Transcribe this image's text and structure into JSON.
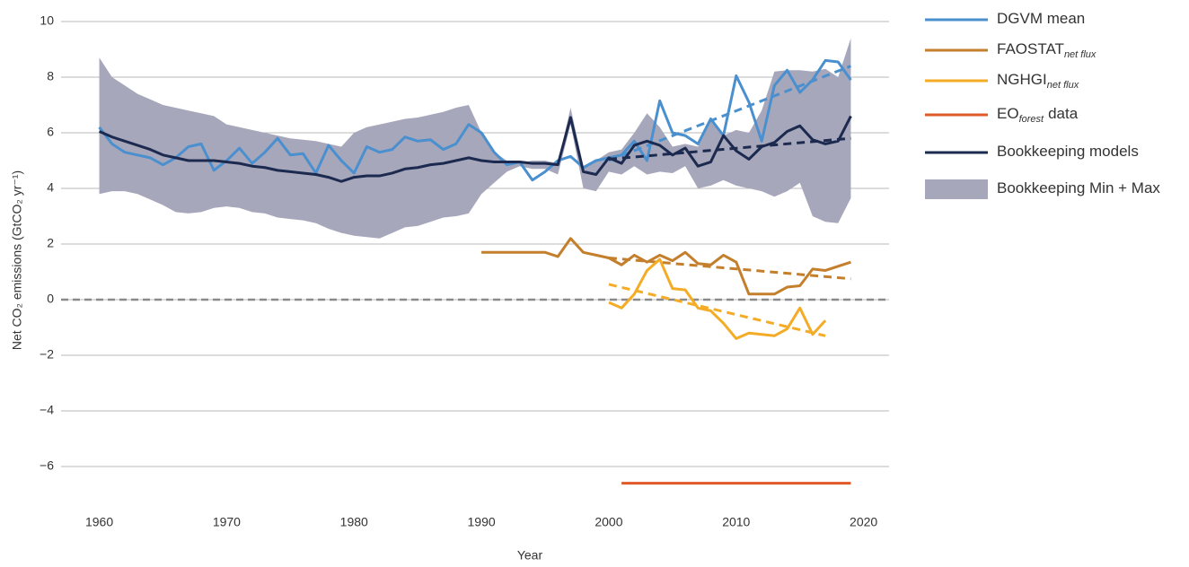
{
  "chart_data": {
    "type": "line",
    "ylabel": "Net CO₂ emissions (GtCO₂ yr⁻¹)",
    "xlabel": "Year",
    "xlim": [
      1957,
      2022
    ],
    "xticks": [
      1960,
      1970,
      1980,
      1990,
      2000,
      2010,
      2020
    ],
    "ylim": [
      -7,
      10
    ],
    "yticks": [
      {
        "value": -6,
        "label": "−6"
      },
      {
        "value": -4,
        "label": "−4"
      },
      {
        "value": -2,
        "label": "−2"
      },
      0,
      2,
      4,
      6,
      8,
      10
    ],
    "grid": true,
    "zero_line": 0,
    "legend": "right",
    "x": [
      1960,
      1961,
      1962,
      1963,
      1964,
      1965,
      1966,
      1967,
      1968,
      1969,
      1970,
      1971,
      1972,
      1973,
      1974,
      1975,
      1976,
      1977,
      1978,
      1979,
      1980,
      1981,
      1982,
      1983,
      1984,
      1985,
      1986,
      1987,
      1988,
      1989,
      1990,
      1991,
      1992,
      1993,
      1994,
      1995,
      1996,
      1997,
      1998,
      1999,
      2000,
      2001,
      2002,
      2003,
      2004,
      2005,
      2006,
      2007,
      2008,
      2009,
      2010,
      2011,
      2012,
      2013,
      2014,
      2015,
      2016,
      2017,
      2018,
      2019
    ],
    "series": [
      {
        "name": "DGVM mean",
        "color": "#4a8fce",
        "values": [
          6.2,
          5.6,
          5.3,
          5.2,
          5.1,
          4.85,
          5.1,
          5.5,
          5.6,
          4.65,
          5.0,
          5.45,
          4.9,
          5.3,
          5.8,
          5.2,
          5.25,
          4.55,
          5.55,
          5.0,
          4.55,
          5.5,
          5.3,
          5.4,
          5.85,
          5.7,
          5.75,
          5.4,
          5.6,
          6.3,
          6.0,
          5.3,
          4.85,
          4.95,
          4.3,
          4.6,
          5.0,
          5.15,
          4.75,
          5.0,
          5.1,
          5.2,
          5.7,
          5.0,
          7.15,
          6.0,
          5.9,
          5.6,
          6.5,
          5.9,
          8.05,
          7.1,
          5.7,
          7.7,
          8.25,
          7.45,
          7.9,
          8.6,
          8.55,
          7.9
        ],
        "trend": {
          "x": [
            2000,
            2019
          ],
          "values": [
            5.0,
            8.4
          ]
        }
      },
      {
        "name": "FAOSTAT",
        "name_sub": "net flux",
        "color": "#c47f2c",
        "x": [
          1990,
          1991,
          1992,
          1993,
          1994,
          1995,
          1996,
          1997,
          1998,
          1999,
          2000,
          2001,
          2002,
          2003,
          2004,
          2005,
          2006,
          2007,
          2008,
          2009,
          2010,
          2011,
          2012,
          2013,
          2014,
          2015,
          2016,
          2017,
          2018,
          2019
        ],
        "values": [
          1.7,
          1.7,
          1.7,
          1.7,
          1.7,
          1.7,
          1.55,
          2.2,
          1.7,
          1.6,
          1.5,
          1.25,
          1.6,
          1.35,
          1.6,
          1.4,
          1.7,
          1.3,
          1.25,
          1.6,
          1.35,
          0.2,
          0.2,
          0.2,
          0.45,
          0.5,
          1.1,
          1.05,
          1.2,
          1.35
        ],
        "trend": {
          "x": [
            2000,
            2019
          ],
          "values": [
            1.5,
            0.75
          ]
        }
      },
      {
        "name": "NGHGI",
        "name_sub": "net flux",
        "color": "#f4ac26",
        "x": [
          2000,
          2001,
          2002,
          2003,
          2004,
          2005,
          2006,
          2007,
          2008,
          2009,
          2010,
          2011,
          2012,
          2013,
          2014,
          2015,
          2016,
          2017
        ],
        "values": [
          -0.1,
          -0.3,
          0.2,
          1.05,
          1.45,
          0.4,
          0.35,
          -0.3,
          -0.4,
          -0.85,
          -1.4,
          -1.2,
          -1.25,
          -1.3,
          -1.05,
          -0.3,
          -1.25,
          -0.75
        ],
        "trend": {
          "x": [
            2000,
            2017
          ],
          "values": [
            0.55,
            -1.3
          ]
        }
      },
      {
        "name": "EO",
        "name_sub": "forest",
        "name_after": "data",
        "color": "#e05a27",
        "x": [
          2001,
          2019
        ],
        "values": [
          -6.6,
          -6.6
        ]
      },
      {
        "name": "Bookkeeping models",
        "color": "#1b2a4e",
        "values": [
          6.05,
          5.85,
          5.7,
          5.55,
          5.4,
          5.2,
          5.1,
          5.0,
          5.0,
          5.0,
          4.95,
          4.9,
          4.8,
          4.75,
          4.65,
          4.6,
          4.55,
          4.5,
          4.4,
          4.25,
          4.4,
          4.45,
          4.45,
          4.55,
          4.7,
          4.75,
          4.85,
          4.9,
          5.0,
          5.1,
          5.0,
          4.95,
          4.95,
          4.95,
          4.9,
          4.9,
          4.85,
          6.55,
          4.6,
          4.5,
          5.1,
          4.9,
          5.55,
          5.7,
          5.55,
          5.2,
          5.45,
          4.8,
          4.95,
          5.9,
          5.35,
          5.05,
          5.5,
          5.65,
          6.05,
          6.25,
          5.75,
          5.6,
          5.7,
          6.6
        ],
        "trend": {
          "x": [
            2000,
            2019
          ],
          "values": [
            5.05,
            5.8
          ]
        }
      },
      {
        "name": "Bookkeeping Min + Max",
        "color": "#a7a7bc",
        "kind": "band",
        "upper": [
          8.7,
          8.0,
          7.7,
          7.4,
          7.2,
          7.0,
          6.9,
          6.8,
          6.7,
          6.6,
          6.3,
          6.2,
          6.1,
          6.0,
          5.9,
          5.8,
          5.75,
          5.7,
          5.6,
          5.5,
          6.0,
          6.2,
          6.3,
          6.4,
          6.5,
          6.55,
          6.65,
          6.75,
          6.9,
          7.0,
          6.0,
          5.3,
          5.0,
          4.9,
          5.0,
          5.0,
          4.9,
          6.9,
          4.8,
          5.0,
          5.3,
          5.4,
          6.0,
          6.7,
          6.2,
          5.5,
          5.6,
          5.5,
          6.5,
          5.9,
          6.1,
          6.0,
          6.8,
          8.2,
          8.25,
          8.25,
          8.2,
          8.3,
          8.0,
          9.4
        ],
        "lower": [
          3.8,
          3.9,
          3.9,
          3.8,
          3.6,
          3.4,
          3.15,
          3.1,
          3.15,
          3.3,
          3.35,
          3.3,
          3.15,
          3.1,
          2.95,
          2.9,
          2.85,
          2.75,
          2.55,
          2.4,
          2.3,
          2.25,
          2.2,
          2.4,
          2.6,
          2.65,
          2.8,
          2.95,
          3.0,
          3.1,
          3.8,
          4.2,
          4.6,
          4.8,
          4.7,
          4.7,
          4.5,
          6.3,
          4.0,
          3.9,
          4.6,
          4.5,
          4.8,
          4.5,
          4.6,
          4.55,
          4.8,
          4.0,
          4.1,
          4.3,
          4.1,
          4.0,
          3.9,
          3.7,
          3.9,
          4.2,
          3.0,
          2.8,
          2.75,
          3.65
        ]
      }
    ]
  }
}
